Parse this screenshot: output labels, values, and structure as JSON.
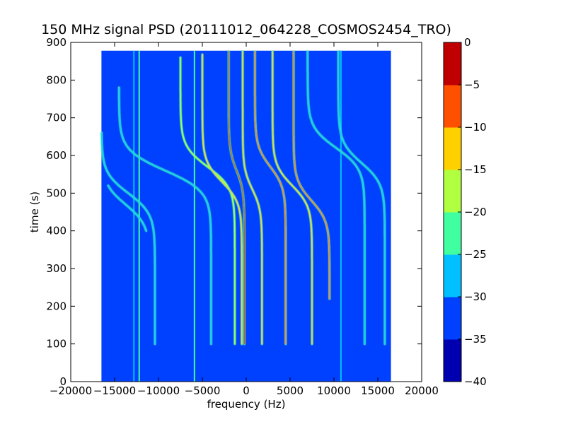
{
  "chart_data": {
    "type": "heatmap",
    "title": "150 MHz signal PSD (20111012_064228_COSMOS2454_TRO)",
    "xlabel": "frequency (Hz)",
    "ylabel": "time (s)",
    "xlim": [
      -20000,
      20000
    ],
    "ylim": [
      0,
      900
    ],
    "x_ticks": [
      -20000,
      -15000,
      -10000,
      -5000,
      0,
      5000,
      10000,
      15000,
      20000
    ],
    "y_ticks": [
      0,
      100,
      200,
      300,
      400,
      500,
      600,
      700,
      800,
      900
    ],
    "data_extent": {
      "x": [
        -16500,
        16500
      ],
      "y": [
        0,
        878
      ]
    },
    "background_level_db": -33,
    "colorbar": {
      "levels": [
        -40,
        -35,
        -30,
        -25,
        -20,
        -15,
        -10,
        -5,
        0
      ],
      "tick_labels": [
        "0",
        "−5",
        "−10",
        "−15",
        "−20",
        "−25",
        "−30",
        "−35",
        "−40"
      ],
      "colors": [
        "#0000b0",
        "#0040ff",
        "#00c0ff",
        "#40ffa0",
        "#b0ff40",
        "#ffd000",
        "#ff5000",
        "#c00000"
      ]
    },
    "doppler_traces": [
      {
        "freq_late": -11000,
        "freq_early": -16500,
        "center_time": 470,
        "t_start": 400,
        "t_end": 520,
        "peak_db": -26
      },
      {
        "freq_late": -10400,
        "freq_early": -16500,
        "center_time": 500,
        "t_start": 100,
        "t_end": 660,
        "peak_db": -27
      },
      {
        "freq_late": -4000,
        "freq_early": -14500,
        "center_time": 560,
        "t_start": 100,
        "t_end": 780,
        "peak_db": -27
      },
      {
        "freq_late": -1300,
        "freq_early": -7500,
        "center_time": 570,
        "t_start": 100,
        "t_end": 860,
        "peak_db": -20
      },
      {
        "freq_late": -500,
        "freq_early": -5000,
        "center_time": 530,
        "t_start": 100,
        "t_end": 870,
        "peak_db": -14
      },
      {
        "freq_late": -200,
        "freq_early": -2000,
        "center_time": 560,
        "t_start": 100,
        "t_end": 878,
        "peak_db": -3
      },
      {
        "freq_late": 1800,
        "freq_early": -400,
        "center_time": 510,
        "t_start": 100,
        "t_end": 878,
        "peak_db": -15
      },
      {
        "freq_late": 4500,
        "freq_early": 1000,
        "center_time": 570,
        "t_start": 100,
        "t_end": 878,
        "peak_db": -8
      },
      {
        "freq_late": 7500,
        "freq_early": 3000,
        "center_time": 520,
        "t_start": 100,
        "t_end": 878,
        "peak_db": -12
      },
      {
        "freq_late": 9500,
        "freq_early": 5400,
        "center_time": 480,
        "t_start": 220,
        "t_end": 878,
        "peak_db": -8
      },
      {
        "freq_late": 13500,
        "freq_early": 7000,
        "center_time": 620,
        "t_start": 100,
        "t_end": 878,
        "peak_db": -26
      },
      {
        "freq_late": 15800,
        "freq_early": 10500,
        "center_time": 580,
        "t_start": 100,
        "t_end": 878,
        "peak_db": -27
      }
    ],
    "constant_frequency_lines": [
      {
        "freq": -12800,
        "peak_db": -27
      },
      {
        "freq": -12200,
        "peak_db": -24
      },
      {
        "freq": -5900,
        "peak_db": -24
      },
      {
        "freq": 10800,
        "peak_db": -28
      }
    ]
  }
}
